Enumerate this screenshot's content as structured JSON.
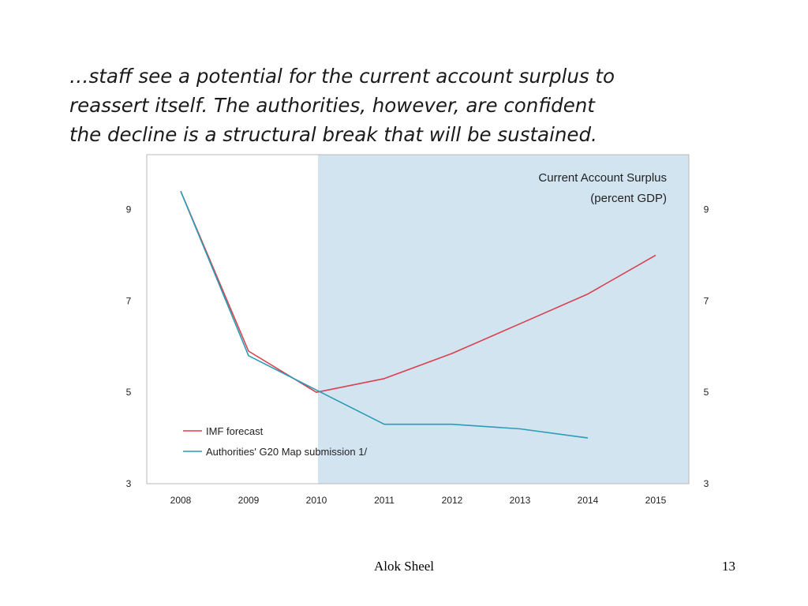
{
  "slide": {
    "text_lines": [
      "…staff see a potential for the current account surplus to",
      "reassert itself.  The authorities, however, are confident",
      "the decline is a structural break that will be sustained."
    ],
    "footer_author": "Alok Sheel",
    "page_number": "13"
  },
  "chart_data": {
    "type": "line",
    "title": "Current Account Surplus",
    "subtitle": "(percent GDP)",
    "categories": [
      "2008",
      "2009",
      "2010",
      "2011",
      "2012",
      "2013",
      "2014",
      "2015"
    ],
    "x": [
      2008,
      2009,
      2010,
      2011,
      2012,
      2013,
      2014,
      2015
    ],
    "ylim": [
      3,
      10.2
    ],
    "yticks": [
      3,
      5,
      7,
      9
    ],
    "ytick_labels": [
      "3",
      "5",
      "7",
      "9"
    ],
    "right_axis": true,
    "grid": false,
    "legend": "bottom-left",
    "shaded_region": {
      "from": "2010",
      "to": "2015",
      "color": "#d3e4f1"
    },
    "series": [
      {
        "name": "IMF forecast",
        "color": "#d9414f",
        "values": [
          9.4,
          5.9,
          5.0,
          5.3,
          5.85,
          6.5,
          7.15,
          8.0
        ]
      },
      {
        "name": "Authorities' G20 Map submission  1/",
        "color": "#2a9cb7",
        "values": [
          9.4,
          5.8,
          5.05,
          4.3,
          4.3,
          4.2,
          4.0,
          null
        ]
      }
    ]
  }
}
